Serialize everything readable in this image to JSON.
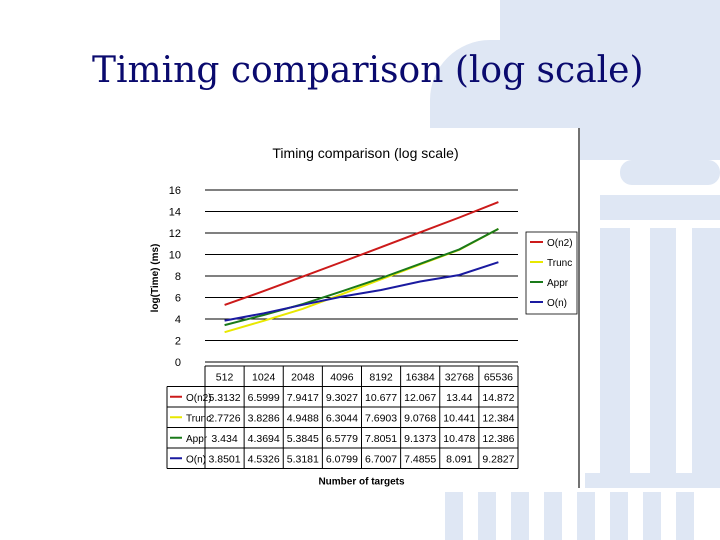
{
  "slide": {
    "title": "Timing comparison (log scale)"
  },
  "chart_data": {
    "type": "line",
    "title": "Timing comparison (log scale)",
    "xlabel": "Number of targets",
    "ylabel": "log(Time) (ms)",
    "ylim": [
      0,
      16
    ],
    "yticks": [
      "0",
      "2",
      "4",
      "6",
      "8",
      "10",
      "12",
      "14",
      "16"
    ],
    "categories": [
      "512",
      "1024",
      "2048",
      "4096",
      "8192",
      "16384",
      "32768",
      "65536"
    ],
    "grid": true,
    "legend": "right",
    "series": [
      {
        "name": "O(n2)",
        "color": "#cc1a1a",
        "values": [
          5.3132,
          6.5999,
          7.9417,
          9.3027,
          10.677,
          12.067,
          13.44,
          14.872
        ],
        "labels": [
          "5.3132",
          "6.5999",
          "7.9417",
          "9.3027",
          "10.677",
          "12.067",
          "13.44",
          "14.872"
        ]
      },
      {
        "name": "Trunc",
        "color": "#e8e800",
        "values": [
          2.7726,
          3.8286,
          4.9488,
          6.3044,
          7.6903,
          9.0768,
          10.441,
          12.384
        ],
        "labels": [
          "2.7726",
          "3.8286",
          "4.9488",
          "6.3044",
          "7.6903",
          "9.0768",
          "10.441",
          "12.384"
        ]
      },
      {
        "name": "Appr",
        "color": "#1a7a1a",
        "values": [
          3.434,
          4.3694,
          5.3845,
          6.5779,
          7.8051,
          9.1373,
          10.478,
          12.386
        ],
        "labels": [
          "3.434",
          "4.3694",
          "5.3845",
          "6.5779",
          "7.8051",
          "9.1373",
          "10.478",
          "12.386"
        ]
      },
      {
        "name": "O(n)",
        "color": "#1a1aa0",
        "values": [
          3.8501,
          4.5326,
          5.3181,
          6.0799,
          6.7007,
          7.4855,
          8.091,
          9.2827
        ],
        "labels": [
          "3.8501",
          "4.5326",
          "5.3181",
          "6.0799",
          "6.7007",
          "7.4855",
          "8.091",
          "9.2827"
        ]
      }
    ]
  }
}
